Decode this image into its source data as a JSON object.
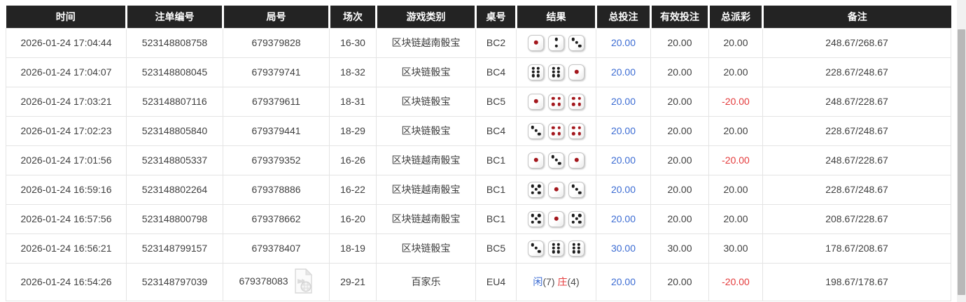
{
  "colors": {
    "header_bg": "#232323",
    "header_text": "#ffffff",
    "border": "#e4e4e4",
    "text": "#404040",
    "bet_blue": "#3c6cd3",
    "loss_red": "#e43b3c",
    "pip_black": "#1c1c1c",
    "pip_red": "#a3161c",
    "scroll_track": "#f1f1f1",
    "scroll_thumb": "#b8b8b8"
  },
  "table": {
    "headers": [
      {
        "label": "时间"
      },
      {
        "label": "注单编号"
      },
      {
        "label": "局号"
      },
      {
        "label": "场次"
      },
      {
        "label": "游戏类别"
      },
      {
        "label": "桌号"
      },
      {
        "label": "结果"
      },
      {
        "label": "总投注"
      },
      {
        "label": "有效投注"
      },
      {
        "label": "总派彩"
      },
      {
        "label": "备注"
      }
    ],
    "rows": [
      {
        "time": "2026-01-24 17:04:44",
        "bet_id": "523148808758",
        "round_id": "679379828",
        "session": "16-30",
        "game_type": "区块链越南骰宝",
        "table_no": "BC2",
        "result": {
          "type": "dice",
          "dice": [
            1,
            2,
            3
          ]
        },
        "total_bet": "20.00",
        "valid_bet": "20.00",
        "payout": "20.00",
        "remark": "248.67/268.67",
        "has_video_icon": false
      },
      {
        "time": "2026-01-24 17:04:07",
        "bet_id": "523148808045",
        "round_id": "679379741",
        "session": "18-32",
        "game_type": "区块链骰宝",
        "table_no": "BC4",
        "result": {
          "type": "dice",
          "dice": [
            6,
            6,
            1
          ]
        },
        "total_bet": "20.00",
        "valid_bet": "20.00",
        "payout": "20.00",
        "remark": "228.67/248.67",
        "has_video_icon": false
      },
      {
        "time": "2026-01-24 17:03:21",
        "bet_id": "523148807116",
        "round_id": "679379611",
        "session": "18-31",
        "game_type": "区块链骰宝",
        "table_no": "BC5",
        "result": {
          "type": "dice",
          "dice": [
            1,
            4,
            4
          ]
        },
        "total_bet": "20.00",
        "valid_bet": "20.00",
        "payout": "-20.00",
        "remark": "248.67/228.67",
        "has_video_icon": false
      },
      {
        "time": "2026-01-24 17:02:23",
        "bet_id": "523148805840",
        "round_id": "679379441",
        "session": "18-29",
        "game_type": "区块链骰宝",
        "table_no": "BC4",
        "result": {
          "type": "dice",
          "dice": [
            3,
            4,
            4
          ]
        },
        "total_bet": "20.00",
        "valid_bet": "20.00",
        "payout": "20.00",
        "remark": "228.67/248.67",
        "has_video_icon": false
      },
      {
        "time": "2026-01-24 17:01:56",
        "bet_id": "523148805337",
        "round_id": "679379352",
        "session": "16-26",
        "game_type": "区块链越南骰宝",
        "table_no": "BC1",
        "result": {
          "type": "dice",
          "dice": [
            1,
            3,
            1
          ]
        },
        "total_bet": "20.00",
        "valid_bet": "20.00",
        "payout": "-20.00",
        "remark": "248.67/228.67",
        "has_video_icon": false
      },
      {
        "time": "2026-01-24 16:59:16",
        "bet_id": "523148802264",
        "round_id": "679378886",
        "session": "16-22",
        "game_type": "区块链越南骰宝",
        "table_no": "BC1",
        "result": {
          "type": "dice",
          "dice": [
            5,
            1,
            3
          ]
        },
        "total_bet": "20.00",
        "valid_bet": "20.00",
        "payout": "20.00",
        "remark": "228.67/248.67",
        "has_video_icon": false
      },
      {
        "time": "2026-01-24 16:57:56",
        "bet_id": "523148800798",
        "round_id": "679378662",
        "session": "16-20",
        "game_type": "区块链越南骰宝",
        "table_no": "BC1",
        "result": {
          "type": "dice",
          "dice": [
            5,
            1,
            5
          ]
        },
        "total_bet": "20.00",
        "valid_bet": "20.00",
        "payout": "20.00",
        "remark": "208.67/228.67",
        "has_video_icon": false
      },
      {
        "time": "2026-01-24 16:56:21",
        "bet_id": "523148799157",
        "round_id": "679378407",
        "session": "18-19",
        "game_type": "区块链骰宝",
        "table_no": "BC5",
        "result": {
          "type": "dice",
          "dice": [
            3,
            6,
            6
          ]
        },
        "total_bet": "30.00",
        "valid_bet": "30.00",
        "payout": "30.00",
        "remark": "178.67/208.67",
        "has_video_icon": false
      },
      {
        "time": "2026-01-24 16:54:26",
        "bet_id": "523148797039",
        "round_id": "679378083",
        "session": "29-21",
        "game_type": "百家乐",
        "table_no": "EU4",
        "result": {
          "type": "baccarat",
          "parts": [
            {
              "label": "闲",
              "score": "(7)",
              "color_key": "blue"
            },
            {
              "label": "庄",
              "score": "(4)",
              "color_key": "red"
            }
          ]
        },
        "total_bet": "20.00",
        "valid_bet": "20.00",
        "payout": "-20.00",
        "remark": "198.67/178.67",
        "has_video_icon": true
      }
    ]
  }
}
